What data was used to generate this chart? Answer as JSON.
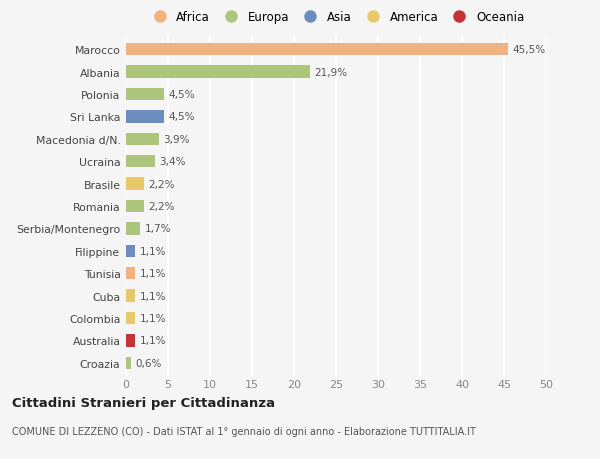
{
  "countries": [
    "Marocco",
    "Albania",
    "Polonia",
    "Sri Lanka",
    "Macedonia d/N.",
    "Ucraina",
    "Brasile",
    "Romania",
    "Serbia/Montenegro",
    "Filippine",
    "Tunisia",
    "Cuba",
    "Colombia",
    "Australia",
    "Croazia"
  ],
  "values": [
    45.5,
    21.9,
    4.5,
    4.5,
    3.9,
    3.4,
    2.2,
    2.2,
    1.7,
    1.1,
    1.1,
    1.1,
    1.1,
    1.1,
    0.6
  ],
  "labels": [
    "45,5%",
    "21,9%",
    "4,5%",
    "4,5%",
    "3,9%",
    "3,4%",
    "2,2%",
    "2,2%",
    "1,7%",
    "1,1%",
    "1,1%",
    "1,1%",
    "1,1%",
    "1,1%",
    "0,6%"
  ],
  "colors": [
    "#f2b27e",
    "#adc47d",
    "#adc47d",
    "#6b8dbf",
    "#adc47d",
    "#adc47d",
    "#e8c96a",
    "#adc47d",
    "#adc47d",
    "#6b8dbf",
    "#f2b27e",
    "#e8c96a",
    "#e8c96a",
    "#c83232",
    "#adc47d"
  ],
  "continent_colors": {
    "Africa": "#f2b27e",
    "Europa": "#adc47d",
    "Asia": "#6b8dbf",
    "America": "#e8c96a",
    "Oceania": "#c83232"
  },
  "legend_order": [
    "Africa",
    "Europa",
    "Asia",
    "America",
    "Oceania"
  ],
  "xlim": [
    0,
    50
  ],
  "xticks": [
    0,
    5,
    10,
    15,
    20,
    25,
    30,
    35,
    40,
    45,
    50
  ],
  "title": "Cittadini Stranieri per Cittadinanza",
  "subtitle": "COMUNE DI LEZZENO (CO) - Dati ISTAT al 1° gennaio di ogni anno - Elaborazione TUTTITALIA.IT",
  "bg_color": "#f5f5f5",
  "grid_color": "#ffffff",
  "bar_height": 0.55
}
